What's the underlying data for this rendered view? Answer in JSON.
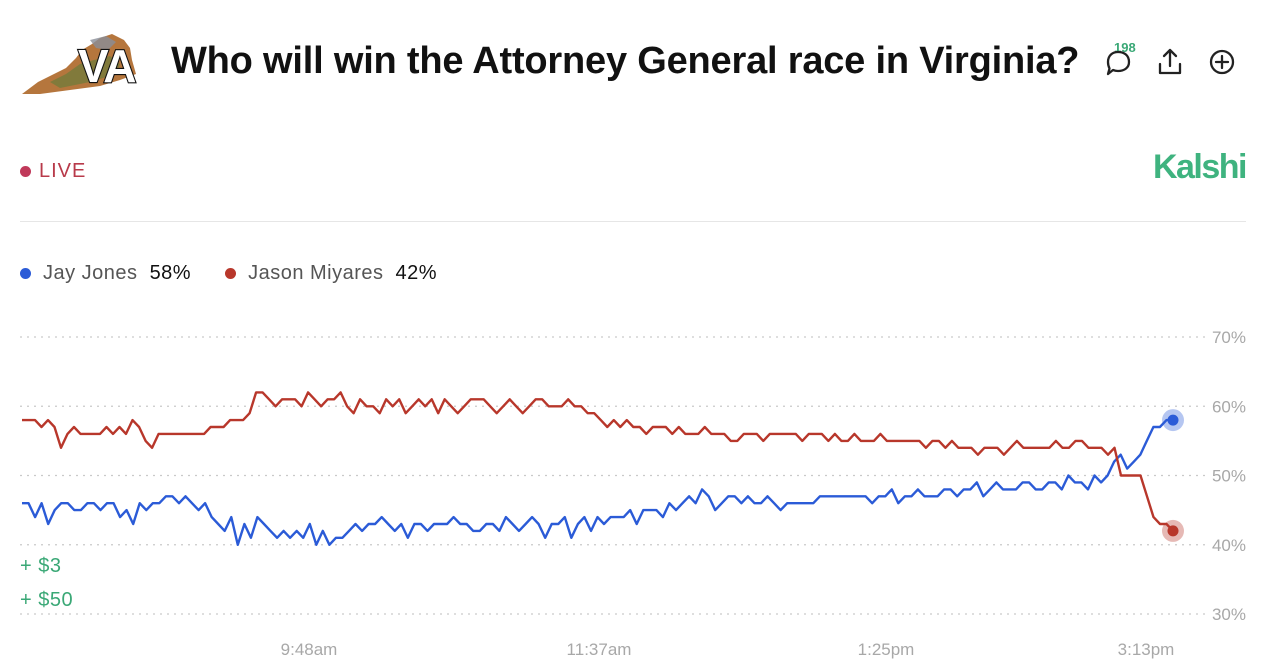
{
  "header": {
    "logo_text": "VA",
    "title": "Who will win the Attorney General race in Virginia?",
    "comment_count": "198"
  },
  "status": {
    "live_label": "LIVE"
  },
  "brand": {
    "name": "Kalshi"
  },
  "colors": {
    "jones": "#2b5bd7",
    "miyares": "#b8372b",
    "accent": "#3fb37f",
    "live": "#c0395a"
  },
  "legend": [
    {
      "name": "Jay Jones",
      "value": "58%"
    },
    {
      "name": "Jason Miyares",
      "value": "42%"
    }
  ],
  "bets": [
    "+ $3",
    "+ $50"
  ],
  "chart_data": {
    "type": "line",
    "x_labels": [
      "9:48am",
      "11:37am",
      "1:25pm",
      "3:13pm"
    ],
    "y_ticks": [
      70,
      60,
      50,
      40,
      30
    ],
    "y_tick_labels": [
      "70%",
      "60%",
      "50%",
      "40%",
      "30%"
    ],
    "ylim": [
      30,
      70
    ],
    "series": [
      {
        "name": "Jay Jones",
        "end_value": 58,
        "values": [
          46,
          46,
          44,
          46,
          43,
          45,
          46,
          46,
          45,
          45,
          46,
          46,
          45,
          46,
          46,
          44,
          45,
          43,
          46,
          45,
          46,
          46,
          47,
          47,
          46,
          47,
          46,
          45,
          46,
          44,
          43,
          42,
          44,
          40,
          43,
          41,
          44,
          43,
          42,
          41,
          42,
          41,
          42,
          41,
          43,
          40,
          42,
          40,
          41,
          41,
          42,
          43,
          42,
          43,
          43,
          44,
          43,
          42,
          43,
          41,
          43,
          43,
          42,
          43,
          43,
          43,
          44,
          43,
          43,
          42,
          42,
          43,
          43,
          42,
          44,
          43,
          42,
          43,
          44,
          43,
          41,
          43,
          43,
          44,
          41,
          43,
          44,
          42,
          44,
          43,
          44,
          44,
          44,
          45,
          43,
          45,
          45,
          45,
          44,
          46,
          45,
          46,
          47,
          46,
          48,
          47,
          45,
          46,
          47,
          47,
          46,
          47,
          46,
          46,
          47,
          46,
          45,
          46,
          46,
          46,
          46,
          46,
          47,
          47,
          47,
          47,
          47,
          47,
          47,
          47,
          46,
          47,
          47,
          48,
          46,
          47,
          47,
          48,
          47,
          47,
          47,
          48,
          48,
          47,
          48,
          48,
          49,
          47,
          48,
          49,
          48,
          48,
          48,
          49,
          49,
          48,
          48,
          49,
          49,
          48,
          50,
          49,
          49,
          48,
          50,
          49,
          50,
          52,
          53,
          51,
          52,
          53,
          55,
          57,
          57,
          58,
          58
        ]
      },
      {
        "name": "Jason Miyares",
        "end_value": 42,
        "values": [
          58,
          58,
          58,
          57,
          58,
          57,
          54,
          56,
          57,
          56,
          56,
          56,
          56,
          57,
          56,
          57,
          56,
          58,
          57,
          55,
          54,
          56,
          56,
          56,
          56,
          56,
          56,
          56,
          56,
          57,
          57,
          57,
          58,
          58,
          58,
          59,
          62,
          62,
          61,
          60,
          61,
          61,
          61,
          60,
          62,
          61,
          60,
          61,
          61,
          62,
          60,
          59,
          61,
          60,
          60,
          59,
          61,
          60,
          61,
          59,
          60,
          61,
          60,
          61,
          59,
          61,
          60,
          59,
          60,
          61,
          61,
          61,
          60,
          59,
          60,
          61,
          60,
          59,
          60,
          61,
          61,
          60,
          60,
          60,
          61,
          60,
          60,
          59,
          59,
          58,
          57,
          58,
          57,
          58,
          57,
          57,
          56,
          57,
          57,
          57,
          56,
          57,
          56,
          56,
          56,
          57,
          56,
          56,
          56,
          55,
          55,
          56,
          56,
          56,
          55,
          56,
          56,
          56,
          56,
          56,
          55,
          56,
          56,
          56,
          55,
          56,
          55,
          55,
          56,
          55,
          55,
          55,
          56,
          55,
          55,
          55,
          55,
          55,
          55,
          54,
          55,
          55,
          54,
          55,
          54,
          54,
          54,
          53,
          54,
          54,
          54,
          53,
          54,
          55,
          54,
          54,
          54,
          54,
          54,
          55,
          54,
          54,
          55,
          55,
          54,
          54,
          54,
          53,
          54,
          50,
          50,
          50,
          50,
          47,
          44,
          43,
          43,
          42
        ]
      }
    ]
  }
}
